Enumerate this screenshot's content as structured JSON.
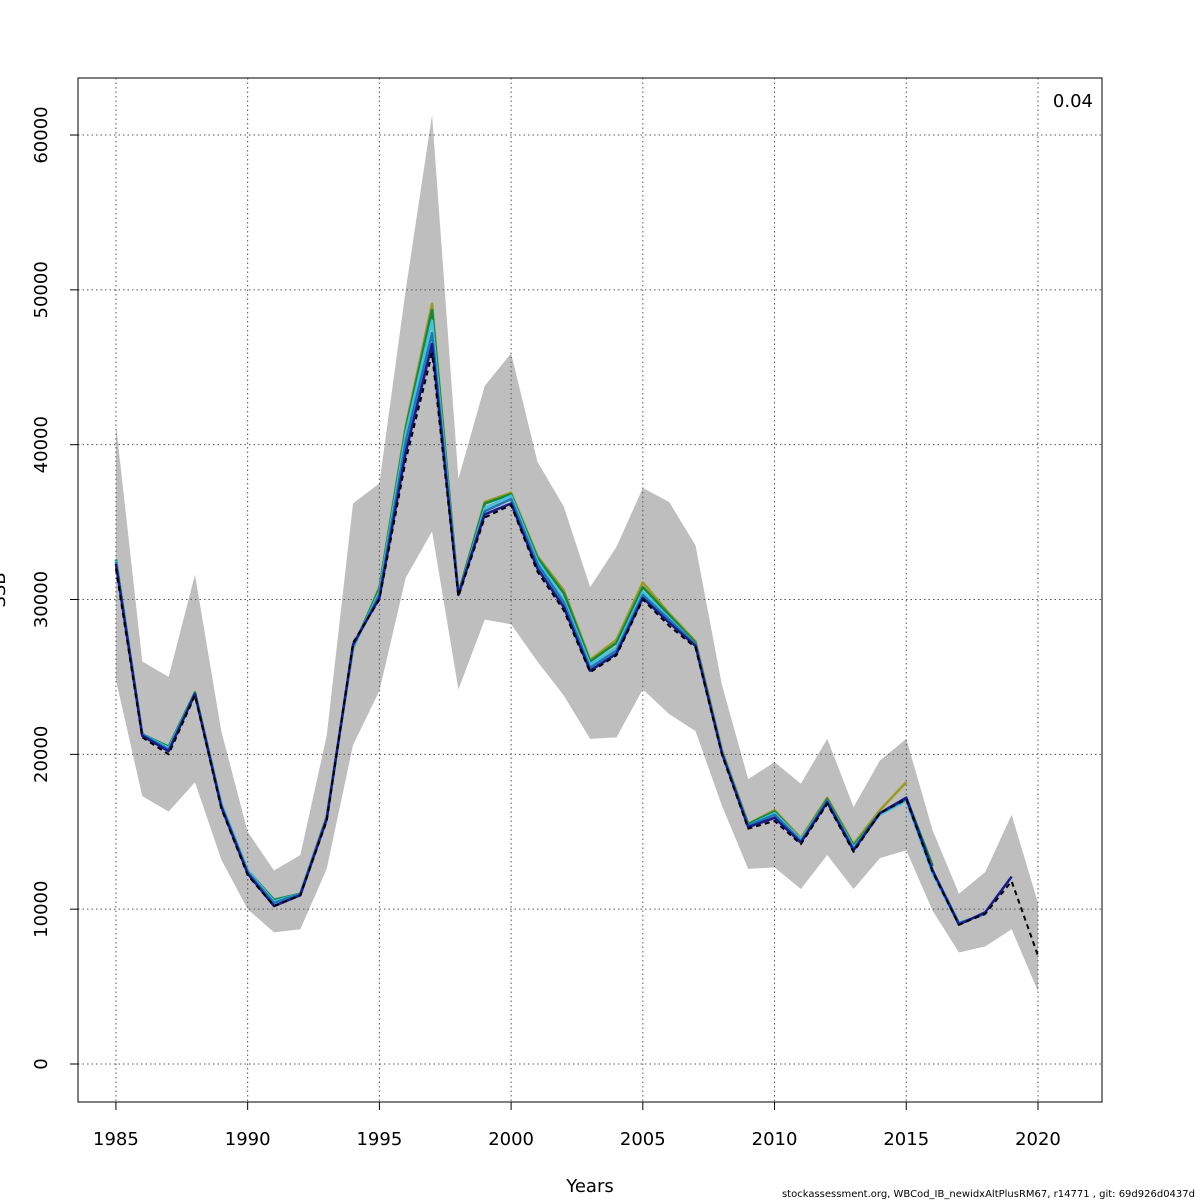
{
  "chart_data": {
    "type": "line",
    "xlabel": "Years",
    "ylabel": "SSB",
    "annotation": "0.04",
    "caption": "stockassessment.org, WBCod_IB_newidxAltPlusRM67, r14771 , git: 69d926d0437d",
    "x": [
      1985,
      1986,
      1987,
      1988,
      1989,
      1990,
      1991,
      1992,
      1993,
      1994,
      1995,
      1996,
      1997,
      1998,
      1999,
      2000,
      2001,
      2002,
      2003,
      2004,
      2005,
      2006,
      2007,
      2008,
      2009,
      2010,
      2011,
      2012,
      2013,
      2014,
      2015,
      2016,
      2017,
      2018,
      2019,
      2020
    ],
    "xlim": [
      1983.56,
      2022.43
    ],
    "xticks": [
      1985,
      1990,
      1995,
      2000,
      2005,
      2010,
      2015,
      2020
    ],
    "ylim": [
      -2454,
      63683
    ],
    "yticks": [
      0,
      10000,
      20000,
      30000,
      40000,
      50000,
      60000
    ],
    "grid": true,
    "band_color": "#bebebe",
    "upper": [
      41300,
      26000,
      25000,
      31600,
      21500,
      15000,
      12500,
      13500,
      21200,
      36200,
      37500,
      50000,
      61300,
      37800,
      43800,
      45900,
      38900,
      36000,
      30800,
      33400,
      37200,
      36300,
      33500,
      24500,
      18400,
      19500,
      18100,
      21000,
      16600,
      19600,
      21000,
      15100,
      11000,
      12400,
      16100,
      10400
    ],
    "lower": [
      24800,
      17300,
      16300,
      18200,
      13200,
      10000,
      8500,
      8700,
      12600,
      20600,
      24100,
      31400,
      34400,
      24200,
      28700,
      28400,
      26000,
      23800,
      21000,
      21100,
      24200,
      22600,
      21500,
      16700,
      12600,
      12700,
      11300,
      13500,
      11300,
      13300,
      13800,
      9900,
      7200,
      7600,
      8700,
      4700
    ],
    "series": [
      {
        "color": "#9a9a20",
        "values": [
          32500,
          21200,
          20300,
          23900,
          16700,
          12500,
          10600,
          11000,
          16000,
          26800,
          30800,
          41200,
          49100,
          30400,
          36300,
          36900,
          32800,
          30600,
          26100,
          27400,
          31100,
          29100,
          27300,
          20300,
          15500,
          16400,
          14600,
          17200,
          14200,
          16400,
          18200,
          null,
          null,
          null,
          null,
          null
        ]
      },
      {
        "color": "#0f8a3c",
        "values": [
          32600,
          21300,
          20500,
          24000,
          16800,
          12500,
          10600,
          11000,
          15900,
          26900,
          30700,
          41000,
          48700,
          30400,
          36200,
          36800,
          32700,
          30400,
          26000,
          27200,
          30800,
          29000,
          27200,
          20200,
          15500,
          16300,
          14500,
          17100,
          14100,
          16200,
          17200,
          12800,
          null,
          null,
          null,
          null
        ]
      },
      {
        "color": "#45c1e6",
        "values": [
          32500,
          21300,
          20400,
          23900,
          16800,
          12500,
          10500,
          11000,
          15900,
          26900,
          30500,
          40700,
          48000,
          30300,
          35900,
          36700,
          32500,
          30000,
          25800,
          26900,
          30500,
          28800,
          27100,
          20200,
          15400,
          16200,
          14500,
          17000,
          14000,
          16100,
          17000,
          12300,
          9000,
          null,
          null,
          null
        ]
      },
      {
        "color": "#1f78b4",
        "values": [
          32400,
          21300,
          20300,
          23900,
          16700,
          12400,
          10400,
          11000,
          15900,
          27000,
          30300,
          40200,
          47200,
          30300,
          35700,
          36500,
          32300,
          29800,
          25600,
          26700,
          30300,
          28700,
          27100,
          20100,
          15400,
          16100,
          14400,
          17000,
          13900,
          16200,
          17100,
          12500,
          9100,
          9700,
          null,
          null
        ]
      },
      {
        "color": "#1a1a8c",
        "values": [
          32300,
          21200,
          20200,
          23900,
          16600,
          12300,
          10200,
          10900,
          15800,
          27100,
          30100,
          39500,
          46500,
          30300,
          35500,
          36200,
          32000,
          29500,
          25400,
          26500,
          30100,
          28500,
          27000,
          20100,
          15300,
          15900,
          14300,
          16900,
          13800,
          16200,
          17200,
          12500,
          9000,
          9800,
          12100,
          null
        ]
      },
      {
        "color": "#000000",
        "dashed": true,
        "values": [
          32000,
          21100,
          20000,
          23800,
          16500,
          12200,
          10200,
          10900,
          15700,
          27200,
          30000,
          39000,
          45900,
          30200,
          35300,
          36100,
          31800,
          29300,
          25300,
          26400,
          30000,
          28300,
          26900,
          20000,
          15200,
          15700,
          14200,
          16800,
          13700,
          16200,
          17100,
          12400,
          9000,
          9700,
          11800,
          7000
        ]
      }
    ]
  }
}
